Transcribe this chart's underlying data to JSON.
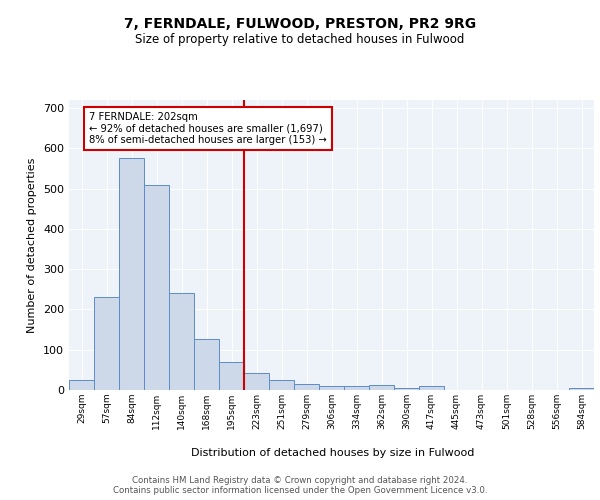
{
  "title1": "7, FERNDALE, FULWOOD, PRESTON, PR2 9RG",
  "title2": "Size of property relative to detached houses in Fulwood",
  "xlabel": "Distribution of detached houses by size in Fulwood",
  "ylabel": "Number of detached properties",
  "categories": [
    "29sqm",
    "57sqm",
    "84sqm",
    "112sqm",
    "140sqm",
    "168sqm",
    "195sqm",
    "223sqm",
    "251sqm",
    "279sqm",
    "306sqm",
    "334sqm",
    "362sqm",
    "390sqm",
    "417sqm",
    "445sqm",
    "473sqm",
    "501sqm",
    "528sqm",
    "556sqm",
    "584sqm"
  ],
  "values": [
    25,
    230,
    575,
    510,
    240,
    127,
    70,
    43,
    25,
    15,
    11,
    11,
    13,
    6,
    10,
    0,
    0,
    0,
    0,
    0,
    6
  ],
  "bar_color": "#cdd8e8",
  "bar_edge_color": "#5b8cc8",
  "vline_color": "#cc0000",
  "annotation_text": "7 FERNDALE: 202sqm\n← 92% of detached houses are smaller (1,697)\n8% of semi-detached houses are larger (153) →",
  "annotation_box_color": "#ffffff",
  "annotation_box_edge": "#cc0000",
  "bg_color": "#eef2f9",
  "grid_color": "#ffffff",
  "footer": "Contains HM Land Registry data © Crown copyright and database right 2024.\nContains public sector information licensed under the Open Government Licence v3.0.",
  "ylim": [
    0,
    720
  ],
  "yticks": [
    0,
    100,
    200,
    300,
    400,
    500,
    600,
    700
  ]
}
